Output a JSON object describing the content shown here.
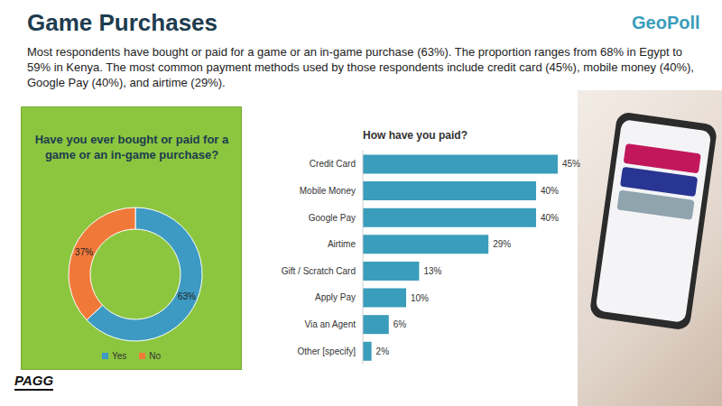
{
  "title": "Game Purchases",
  "subtitle": "Most respondents have bought or paid for a game or an in-game purchase (63%). The proportion ranges from 68% in Egypt to 59% in Kenya. The most common payment methods used by those respondents include credit card (45%), mobile money (40%), Google Pay (40%), and airtime (29%).",
  "logos": [
    "GeoPoll",
    "PAGG"
  ],
  "chart_data": [
    {
      "type": "pie",
      "title": "Have you ever bought or paid for a game or an in-game purchase?",
      "categories": [
        "Yes",
        "No"
      ],
      "values": [
        63,
        37
      ],
      "value_labels": [
        "63%",
        "37%"
      ],
      "colors": [
        "#3d9ac2",
        "#f0793a"
      ],
      "data_labels": true,
      "legend": "bottom"
    },
    {
      "type": "bar",
      "orientation": "horizontal",
      "title": "How have you paid?",
      "categories": [
        "Credit Card",
        "Mobile Money",
        "Google Pay",
        "Airtime",
        "Gift / Scratch Card",
        "Apply Pay",
        "Via an Agent",
        "Other [specify]"
      ],
      "values": [
        45,
        40,
        40,
        29,
        13,
        10,
        6,
        2
      ],
      "value_labels": [
        "45%",
        "40%",
        "40%",
        "29%",
        "13%",
        "10%",
        "6%",
        "2%"
      ],
      "color": "#3a9dbb",
      "xlim": [
        0,
        45
      ],
      "data_labels": true,
      "tick_labels": "y"
    }
  ]
}
